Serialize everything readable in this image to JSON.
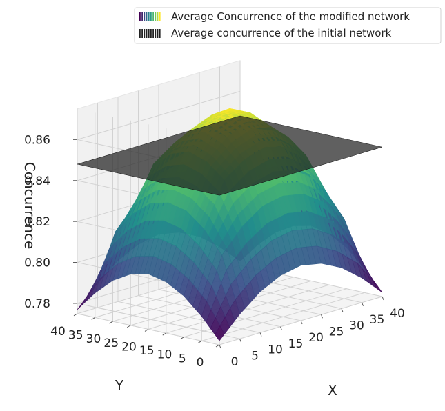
{
  "chart_data": {
    "type": "surface",
    "title": "",
    "xlabel": "X",
    "ylabel": "Y",
    "zlabel": "Concurrence",
    "x_ticks": [
      "0",
      "5",
      "10",
      "15",
      "20",
      "25",
      "30",
      "35",
      "40"
    ],
    "y_ticks": [
      "0",
      "5",
      "10",
      "15",
      "20",
      "25",
      "30",
      "35",
      "40"
    ],
    "z_ticks": [
      "0.78",
      "0.80",
      "0.82",
      "0.84",
      "0.86"
    ],
    "xlim": [
      0,
      40
    ],
    "ylim": [
      0,
      40
    ],
    "zlim": [
      0.775,
      0.875
    ],
    "legend_position": "top-right",
    "grid": true,
    "colormap": [
      "#440154",
      "#3b528b",
      "#21918c",
      "#5ec962",
      "#fde725"
    ],
    "series": [
      {
        "name": "Average Concurrence of the modified network",
        "surface": {
          "x": [
            0,
            5,
            10,
            15,
            20,
            25,
            30,
            35,
            40
          ],
          "y": [
            0,
            5,
            10,
            15,
            20,
            25,
            30,
            35,
            40
          ],
          "z": [
            [
              0.777,
              0.787,
              0.795,
              0.8,
              0.802,
              0.8,
              0.795,
              0.787,
              0.777
            ],
            [
              0.787,
              0.814,
              0.825,
              0.832,
              0.834,
              0.832,
              0.825,
              0.814,
              0.787
            ],
            [
              0.795,
              0.825,
              0.846,
              0.853,
              0.856,
              0.853,
              0.846,
              0.825,
              0.795
            ],
            [
              0.8,
              0.832,
              0.853,
              0.862,
              0.866,
              0.862,
              0.853,
              0.832,
              0.8
            ],
            [
              0.802,
              0.834,
              0.856,
              0.866,
              0.871,
              0.866,
              0.856,
              0.834,
              0.802
            ],
            [
              0.8,
              0.832,
              0.853,
              0.862,
              0.866,
              0.862,
              0.853,
              0.832,
              0.8
            ],
            [
              0.795,
              0.825,
              0.846,
              0.853,
              0.856,
              0.853,
              0.846,
              0.825,
              0.795
            ],
            [
              0.787,
              0.814,
              0.825,
              0.832,
              0.834,
              0.832,
              0.825,
              0.814,
              0.787
            ],
            [
              0.777,
              0.787,
              0.795,
              0.8,
              0.802,
              0.8,
              0.795,
              0.787,
              0.777
            ]
          ]
        }
      },
      {
        "name": "Average concurrence of the initial network",
        "constant_z": 0.848,
        "color": "#222222"
      }
    ]
  }
}
